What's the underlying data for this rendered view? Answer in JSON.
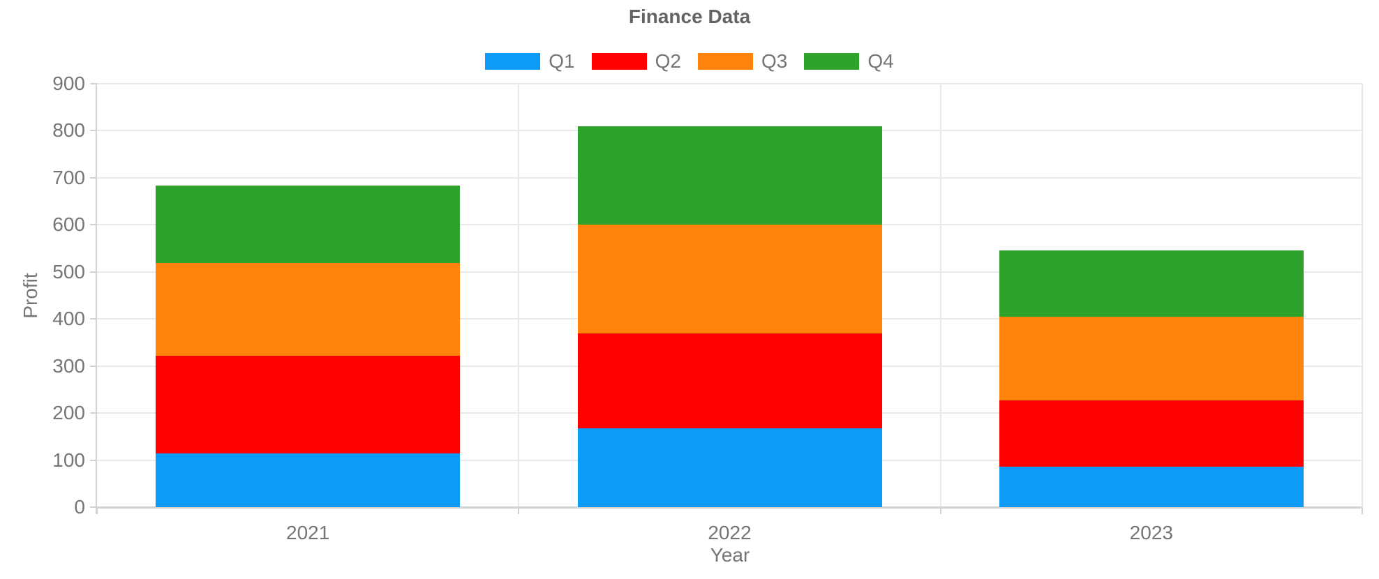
{
  "chart_data": {
    "type": "bar",
    "stacked": true,
    "title": "Finance Data",
    "xlabel": "Year",
    "ylabel": "Profit",
    "categories": [
      "2021",
      "2022",
      "2023"
    ],
    "series": [
      {
        "name": "Q1",
        "color": "#0E9BF8",
        "values": [
          114,
          168,
          86
        ]
      },
      {
        "name": "Q2",
        "color": "#FF0000",
        "values": [
          208,
          201,
          141
        ]
      },
      {
        "name": "Q3",
        "color": "#FF830D",
        "values": [
          197,
          231,
          178
        ]
      },
      {
        "name": "Q4",
        "color": "#2DA32C",
        "values": [
          164,
          209,
          140
        ]
      }
    ],
    "stacked_totals": [
      683,
      809,
      545
    ],
    "ylim": [
      0,
      900
    ],
    "yticks": [
      0,
      100,
      200,
      300,
      400,
      500,
      600,
      700,
      800,
      900
    ],
    "grid": true,
    "legend_position": "top",
    "legend_labels": [
      "Q1",
      "Q2",
      "Q3",
      "Q4"
    ]
  },
  "style": {
    "text_color": "#757575",
    "title_color": "#646464",
    "gridline_color": "#E9E9E9",
    "axis_line_color": "#D2D2D2",
    "background": "#FFFFFF"
  }
}
